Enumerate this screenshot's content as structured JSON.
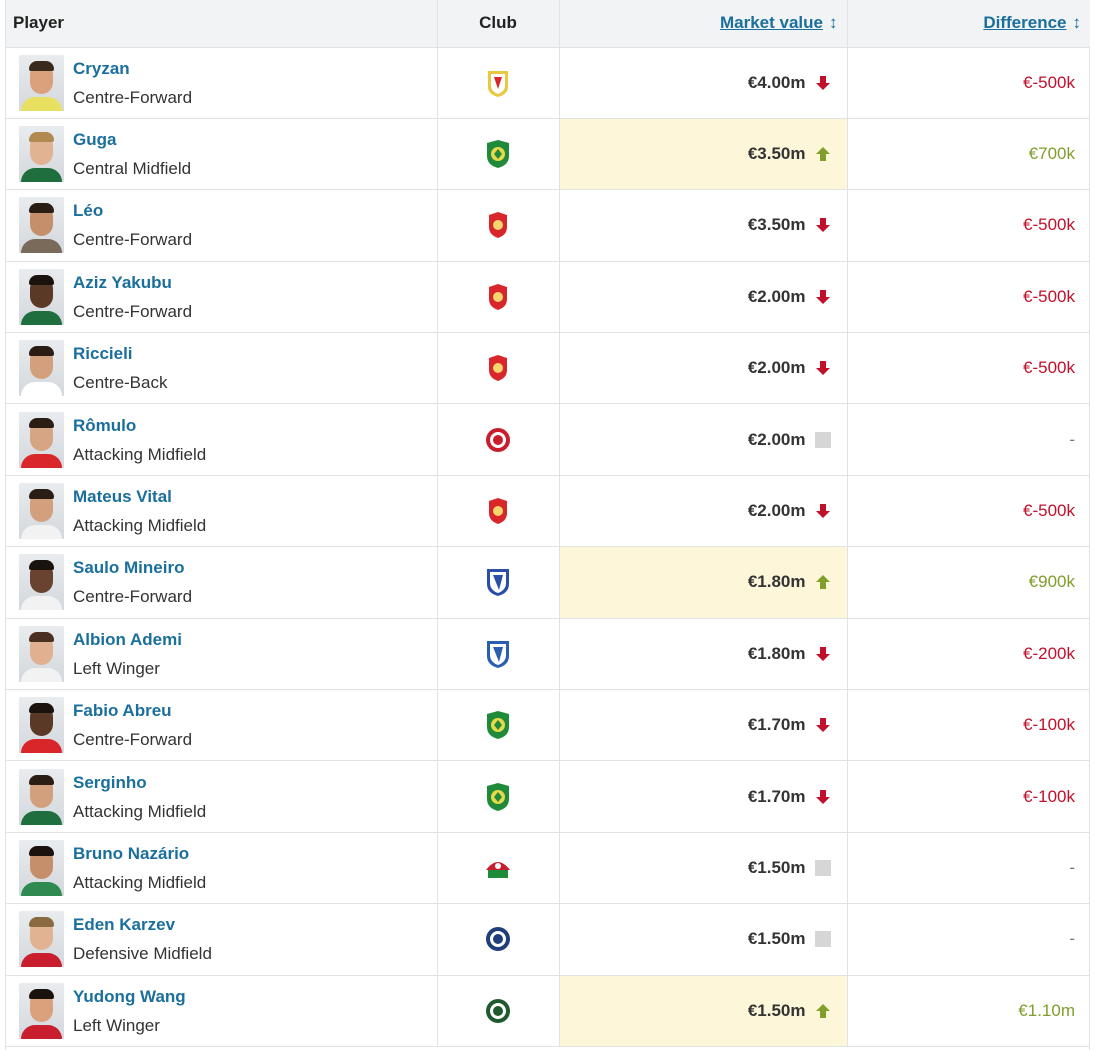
{
  "header": {
    "player": "Player",
    "club": "Club",
    "market_value": "Market value",
    "difference": "Difference"
  },
  "colors": {
    "link": "#1a6f9c",
    "negative": "#c0102a",
    "positive": "#7f9e2a",
    "highlight": "#fdf6d9",
    "header_bg": "#f2f3f4"
  },
  "rows": [
    {
      "name": "Cryzan",
      "position": "Centre-Forward",
      "value": "€4.00m",
      "trend": "down",
      "diff": "€-500k",
      "crest": "changchun-crest",
      "crest_color": "#e8c840",
      "skin": "#d9a27c",
      "hair": "#3a2a1e",
      "shirt": "#e8e060"
    },
    {
      "name": "Guga",
      "position": "Central Midfield",
      "value": "€3.50m",
      "trend": "up",
      "diff": "€700k",
      "crest": "guoan-crest",
      "crest_color": "#1f8a3a",
      "skin": "#e2b393",
      "hair": "#b08850",
      "shirt": "#1f6e3d"
    },
    {
      "name": "Léo",
      "position": "Centre-Forward",
      "value": "€3.50m",
      "trend": "down",
      "diff": "€-500k",
      "crest": "port-crest",
      "crest_color": "#d9262b",
      "skin": "#c68f6b",
      "hair": "#2a1d14",
      "shirt": "#7a6a5a"
    },
    {
      "name": "Aziz Yakubu",
      "position": "Centre-Forward",
      "value": "€2.00m",
      "trend": "down",
      "diff": "€-500k",
      "crest": "meizhou-crest",
      "crest_color": "#d9262b",
      "skin": "#5a3a26",
      "hair": "#1a120c",
      "shirt": "#1f6e3d"
    },
    {
      "name": "Riccieli",
      "position": "Centre-Back",
      "value": "€2.00m",
      "trend": "down",
      "diff": "€-500k",
      "crest": "meizhou-crest",
      "crest_color": "#d9262b",
      "skin": "#d2a07d",
      "hair": "#2a1d14",
      "shirt": "#ffffff"
    },
    {
      "name": "Rômulo",
      "position": "Attacking Midfield",
      "value": "€2.00m",
      "trend": "none",
      "diff": "-",
      "crest": "chengdu-crest",
      "crest_color": "#c81e2e",
      "skin": "#d6a584",
      "hair": "#2a1d14",
      "shirt": "#d9262b"
    },
    {
      "name": "Mateus Vital",
      "position": "Attacking Midfield",
      "value": "€2.00m",
      "trend": "down",
      "diff": "€-500k",
      "crest": "port-crest",
      "crest_color": "#d9262b",
      "skin": "#d2a07d",
      "hair": "#2a1d14",
      "shirt": "#f2f2f2"
    },
    {
      "name": "Saulo Mineiro",
      "position": "Centre-Forward",
      "value": "€1.80m",
      "trend": "up",
      "diff": "€900k",
      "crest": "shenhua-crest",
      "crest_color": "#2a4fa8",
      "skin": "#6a4230",
      "hair": "#1a120c",
      "shirt": "#f2f2f2"
    },
    {
      "name": "Albion Ademi",
      "position": "Left Winger",
      "value": "€1.80m",
      "trend": "down",
      "diff": "€-200k",
      "crest": "qingdao-crest",
      "crest_color": "#2a5fb0",
      "skin": "#e0b090",
      "hair": "#4a3020",
      "shirt": "#f2f2f2"
    },
    {
      "name": "Fabio Abreu",
      "position": "Centre-Forward",
      "value": "€1.70m",
      "trend": "down",
      "diff": "€-100k",
      "crest": "guoan-crest",
      "crest_color": "#1f8a3a",
      "skin": "#5a3a26",
      "hair": "#1a120c",
      "shirt": "#d9262b"
    },
    {
      "name": "Serginho",
      "position": "Attacking Midfield",
      "value": "€1.70m",
      "trend": "down",
      "diff": "€-100k",
      "crest": "guoan-crest",
      "crest_color": "#1f8a3a",
      "skin": "#d2a07d",
      "hair": "#2a1d14",
      "shirt": "#1f6e3d"
    },
    {
      "name": "Bruno Nazário",
      "position": "Attacking Midfield",
      "value": "€1.50m",
      "trend": "none",
      "diff": "-",
      "crest": "henan-crest",
      "crest_color": "#c81e2e",
      "skin": "#c68f6b",
      "hair": "#1a120c",
      "shirt": "#2e8a4f"
    },
    {
      "name": "Eden Karzev",
      "position": "Defensive Midfield",
      "value": "€1.50m",
      "trend": "none",
      "diff": "-",
      "crest": "dalian-crest",
      "crest_color": "#1e3f7a",
      "skin": "#e2b393",
      "hair": "#8a6a40",
      "shirt": "#c81e2e"
    },
    {
      "name": "Yudong Wang",
      "position": "Left Winger",
      "value": "€1.50m",
      "trend": "up",
      "diff": "€1.10m",
      "crest": "zhejiang-crest",
      "crest_color": "#1f5a2e",
      "skin": "#d9a27c",
      "hair": "#1a120c",
      "shirt": "#c81e2e"
    }
  ]
}
